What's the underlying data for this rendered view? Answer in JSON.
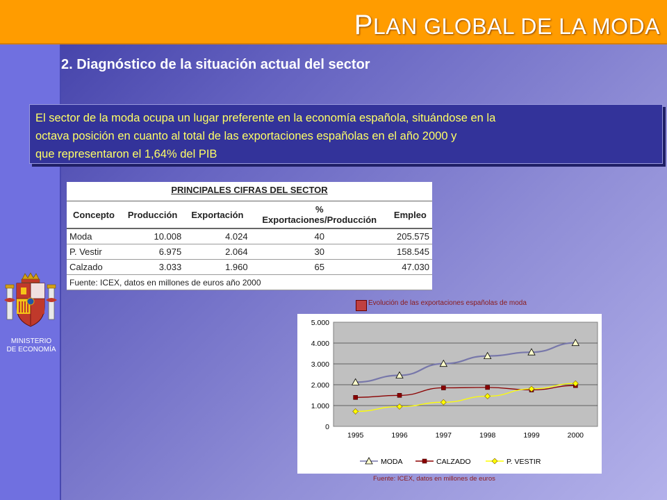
{
  "header": {
    "title_first": "P",
    "title_rest": "LAN GLOBAL DE LA MODA"
  },
  "section": {
    "heading": "2. Diagnóstico de la situación actual del sector"
  },
  "info_box": {
    "line1": "El sector de la moda ocupa un lugar preferente en la economía española, situándose en la",
    "line2": "octava posición en cuanto al total de las exportaciones españolas en el año 2000 y",
    "line3": "que representaron el 1,64% del PIB"
  },
  "sidebar": {
    "ministry_line1": "MINISTERIO",
    "ministry_line2": "DE ECONOMÍA"
  },
  "table": {
    "title": "PRINCIPALES CIFRAS DEL SECTOR",
    "headers": [
      "Concepto",
      "Producción",
      "Exportación",
      "%",
      "Exportaciones/Producción",
      "Empleo"
    ],
    "rows": [
      [
        "Moda",
        "10.008",
        "4.024",
        "40",
        "205.575"
      ],
      [
        "P. Vestir",
        "6.975",
        "2.064",
        "30",
        "158.545"
      ],
      [
        "Calzado",
        "3.033",
        "1.960",
        "65",
        "47.030"
      ]
    ],
    "source": "Fuente: ICEX, datos en millones de euros año 2000"
  },
  "chart_caption": "Evolución de las exportaciones españolas de moda",
  "chart_source": "Fuente: ICEX, datos en millones de euros",
  "chart_data": {
    "type": "line",
    "categories": [
      "1995",
      "1996",
      "1997",
      "1998",
      "1999",
      "2000"
    ],
    "series": [
      {
        "name": "MODA",
        "values": [
          2120,
          2450,
          3010,
          3380,
          3560,
          4010
        ],
        "color": "#7777aa",
        "marker": "triangle"
      },
      {
        "name": "CALZADO",
        "values": [
          1390,
          1490,
          1850,
          1870,
          1750,
          1960
        ],
        "color": "#8b0000",
        "marker": "square"
      },
      {
        "name": "P. VESTIR",
        "values": [
          720,
          950,
          1160,
          1450,
          1800,
          2060
        ],
        "color": "#ffff00",
        "marker": "diamond"
      }
    ],
    "ylim": [
      0,
      5000
    ],
    "yticks": [
      "0",
      "1.000",
      "2.000",
      "3.000",
      "4.000",
      "5.000"
    ],
    "grid": true,
    "legend": "bottom",
    "plot_background": "#c0c0c0"
  }
}
